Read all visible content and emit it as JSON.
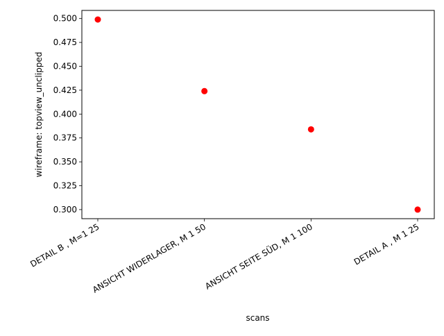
{
  "chart_data": {
    "type": "scatter",
    "title": "",
    "xlabel": "scans",
    "ylabel": "wireframe: topview_unclipped",
    "categories": [
      "DETAIL  B , M=1 25",
      "ANSICHT WIDERLAGER, M 1 50",
      "ANSICHT SEITE SÜD, M 1  100",
      "DETAIL  A , M 1 25"
    ],
    "values": [
      0.499,
      0.424,
      0.384,
      0.3
    ],
    "ylim": [
      0.2905,
      0.5085
    ],
    "yticks": [
      0.3,
      0.325,
      0.35,
      0.375,
      0.4,
      0.425,
      0.45,
      0.475,
      0.5
    ],
    "ytick_labels": [
      "0.300",
      "0.325",
      "0.350",
      "0.375",
      "0.400",
      "0.425",
      "0.450",
      "0.475",
      "0.500"
    ],
    "marker_color": "#ff0000",
    "grid": false,
    "legend": "none"
  }
}
